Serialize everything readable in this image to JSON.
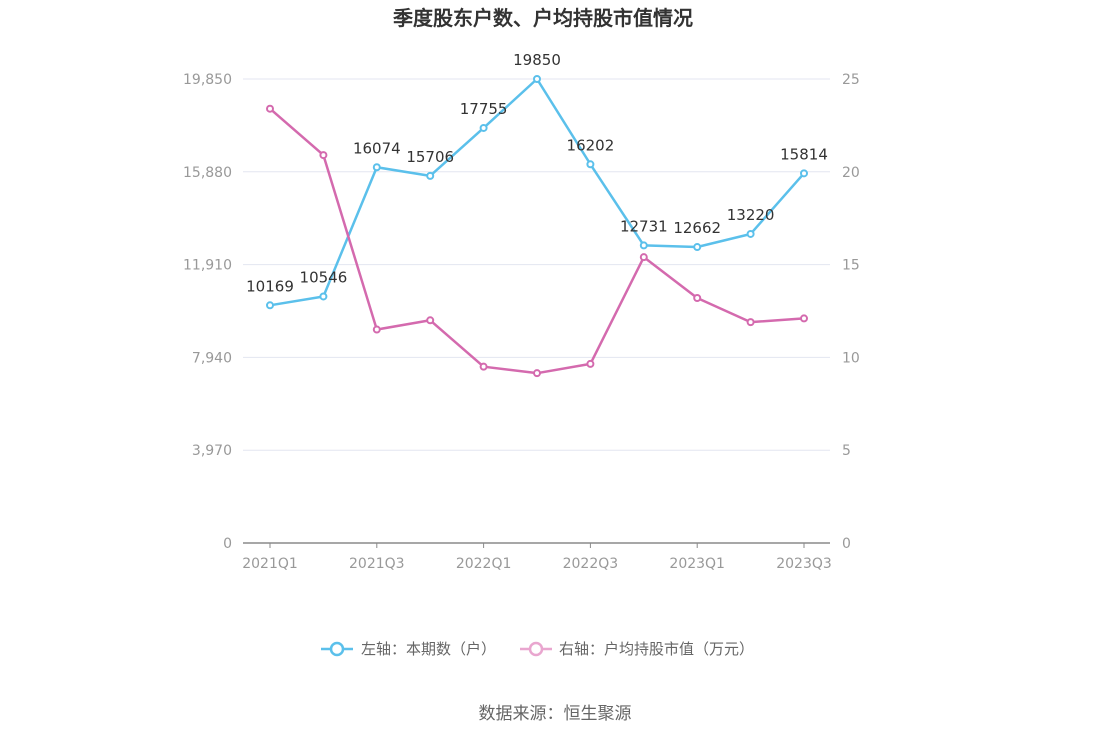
{
  "chart_data": {
    "type": "line",
    "title": "季度股东户数、户均持股市值情况",
    "categories": [
      "2021Q1",
      "2021Q2",
      "2021Q3",
      "2021Q4",
      "2022Q1",
      "2022Q2",
      "2022Q3",
      "2022Q4",
      "2023Q1",
      "2023Q2",
      "2023Q3"
    ],
    "x_tick_labels": [
      "2021Q1",
      "2021Q3",
      "2022Q1",
      "2022Q3",
      "2023Q1",
      "2023Q3"
    ],
    "y_left": {
      "ticks": [
        "0",
        "3,970",
        "7,940",
        "11,910",
        "15,880",
        "19,850"
      ],
      "ylim": [
        0,
        19850
      ]
    },
    "y_right": {
      "ticks": [
        "0",
        "5",
        "10",
        "15",
        "20",
        "25"
      ],
      "ylim": [
        0,
        25
      ]
    },
    "series": [
      {
        "name": "左轴：本期数（户）",
        "axis": "left",
        "color": "#5bc0eb",
        "values": [
          10169,
          10546,
          16074,
          15706,
          17755,
          19850,
          16202,
          12731,
          12662,
          13220,
          15814
        ],
        "labels": [
          "10169",
          "10546",
          "16074",
          "15706",
          "17755",
          "19850",
          "16202",
          "12731",
          "12662",
          "13220",
          "15814"
        ]
      },
      {
        "name": "右轴：户均持股市值（万元）",
        "axis": "right",
        "color": "#d46aae",
        "values": [
          23.4,
          20.9,
          11.5,
          12.0,
          9.5,
          9.15,
          9.65,
          15.4,
          13.2,
          11.9,
          12.1
        ]
      }
    ],
    "grid": true,
    "legend_position": "bottom"
  },
  "source": "数据来源：恒生聚源"
}
